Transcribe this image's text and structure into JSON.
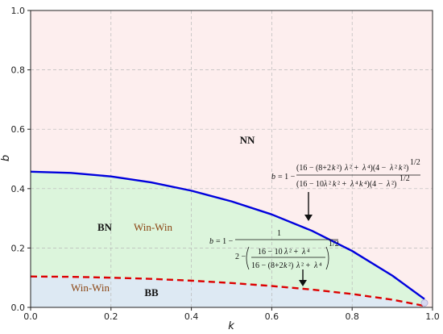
{
  "chart_data": {
    "type": "area",
    "xlabel": "k",
    "ylabel": "b",
    "xlim": [
      0.0,
      1.0
    ],
    "ylim": [
      0.0,
      1.0
    ],
    "xticks": [
      "0.0",
      "0.2",
      "0.4",
      "0.6",
      "0.8",
      "1.0"
    ],
    "yticks": [
      "0.0",
      "0.2",
      "0.4",
      "0.6",
      "0.8",
      "1.0"
    ],
    "grid": true,
    "series": [
      {
        "style": "solid",
        "color": "#0000dd",
        "x": [
          0.0,
          0.1,
          0.2,
          0.3,
          0.4,
          0.5,
          0.6,
          0.7,
          0.8,
          0.9,
          0.98
        ],
        "y": [
          0.457,
          0.453,
          0.441,
          0.421,
          0.393,
          0.357,
          0.313,
          0.258,
          0.19,
          0.107,
          0.028
        ]
      },
      {
        "style": "dashed",
        "color": "#dd0000",
        "x": [
          0.0,
          0.1,
          0.2,
          0.3,
          0.4,
          0.5,
          0.6,
          0.7,
          0.8,
          0.9,
          0.98
        ],
        "y": [
          0.104,
          0.103,
          0.1,
          0.096,
          0.09,
          0.082,
          0.072,
          0.06,
          0.045,
          0.026,
          0.005
        ]
      }
    ],
    "regions": {
      "nn": {
        "label": "NN",
        "color": "#fdeeee"
      },
      "bn": {
        "label": "BN",
        "color": "#dcf5dc"
      },
      "bb": {
        "label": "BB",
        "color": "#dde9f3"
      },
      "win_win_bn": "Win-Win",
      "win_win_bb": "Win-Win"
    },
    "annotations": {
      "upper_formula": "b = 1 − (16 − (8+2k²)λ² + λ⁴)(4 − λ²k²)^(1/2) / ((16 − 10λ²k² + λ⁴k⁴)(4 − λ²)^(1/2))",
      "lower_formula": "b = 1 − 1 / (2 − ((16 − 10λ² + λ⁴) / (16 − (8+2k²)λ² + λ⁴))^(1/2))"
    }
  }
}
